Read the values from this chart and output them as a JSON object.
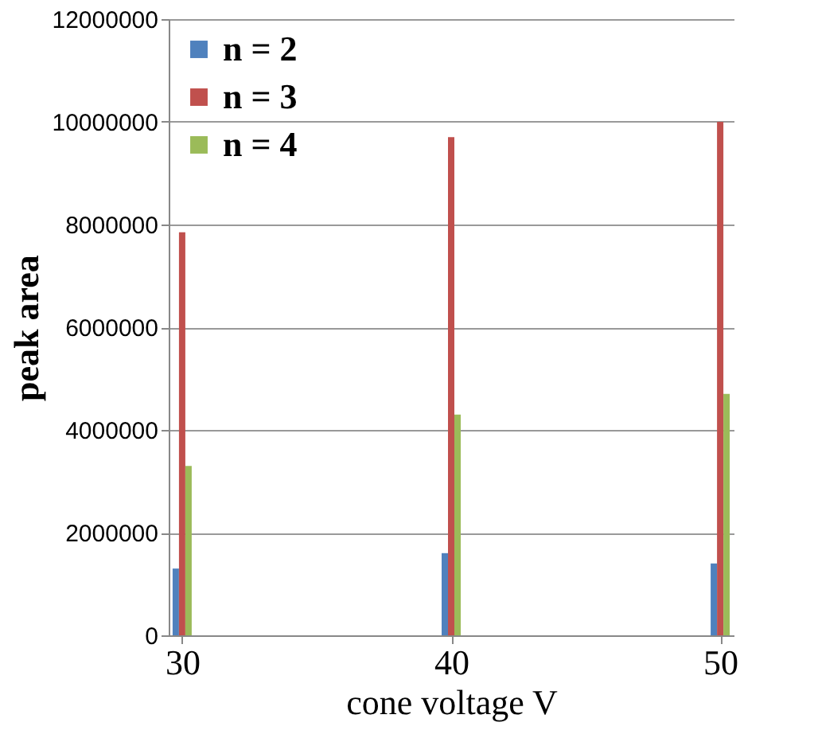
{
  "chart_data": {
    "type": "bar",
    "xlabel": "cone voltage V",
    "ylabel": "peak area",
    "x": [
      30,
      40,
      50
    ],
    "xlim": [
      29.5,
      50.5
    ],
    "xticks": [
      30,
      40,
      50
    ],
    "ylim": [
      0,
      12000000
    ],
    "yticks": [
      0,
      2000000,
      4000000,
      6000000,
      8000000,
      10000000,
      12000000
    ],
    "grid": "y",
    "legend": "top left",
    "series": [
      {
        "name": "n = 2",
        "color": "#4f81bd",
        "values": [
          1300000,
          1600000,
          1400000
        ]
      },
      {
        "name": "n = 3",
        "color": "#c0504d",
        "values": [
          7850000,
          9700000,
          10000000
        ]
      },
      {
        "name": "n = 4",
        "color": "#9bbb59",
        "values": [
          3300000,
          4300000,
          4700000
        ]
      }
    ]
  }
}
